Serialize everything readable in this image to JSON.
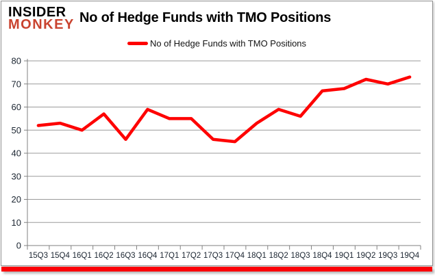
{
  "logo": {
    "line1": "INSIDER",
    "line2": "MONKEY"
  },
  "title": "No of Hedge Funds with TMO Positions",
  "legend": {
    "label": "No of Hedge Funds with TMO Positions"
  },
  "colors": {
    "series_red": "#fe0000",
    "logo_black": "#000000",
    "logo_red": "#c9432f",
    "grid_gray": "#9a9a9a",
    "axis_gray": "#808080",
    "axis_label": "#1a2430",
    "bottom_bar_red": "#fb0007"
  },
  "chart_data": {
    "type": "line",
    "title": "No of Hedge Funds with TMO Positions",
    "categories": [
      "15Q3",
      "15Q4",
      "16Q1",
      "16Q2",
      "16Q3",
      "16Q4",
      "17Q1",
      "17Q2",
      "17Q3",
      "17Q4",
      "18Q1",
      "18Q2",
      "18Q3",
      "18Q4",
      "19Q1",
      "19Q2",
      "19Q3",
      "19Q4"
    ],
    "series": [
      {
        "name": "No of Hedge Funds with TMO Positions",
        "color": "#fe0000",
        "values": [
          52,
          53,
          50,
          57,
          46,
          59,
          55,
          55,
          46,
          45,
          53,
          59,
          56,
          67,
          68,
          72,
          70,
          73
        ]
      }
    ],
    "xlabel": "",
    "ylabel": "",
    "ylim": [
      0,
      80
    ],
    "yticks": [
      0,
      10,
      20,
      30,
      40,
      50,
      60,
      70,
      80
    ],
    "grid": "horizontal",
    "legend_position": "top-center"
  }
}
